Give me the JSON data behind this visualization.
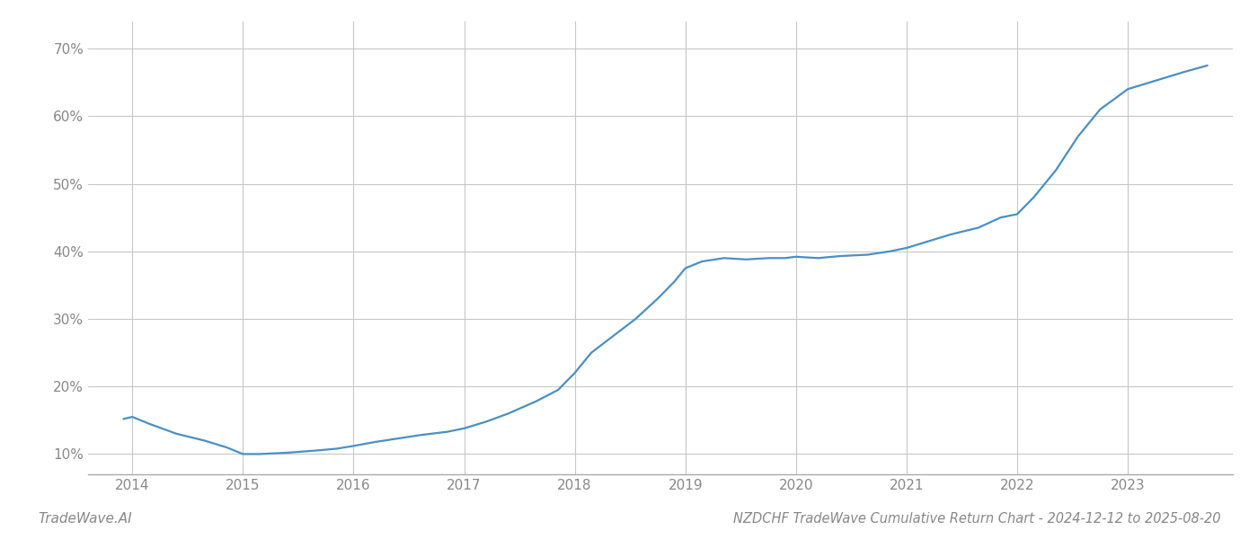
{
  "title": "NZDCHF TradeWave Cumulative Return Chart - 2024-12-12 to 2025-08-20",
  "watermark": "TradeWave.AI",
  "line_color": "#4a90c4",
  "background_color": "#ffffff",
  "grid_color": "#c8c8c8",
  "x_values": [
    2013.92,
    2014.0,
    2014.15,
    2014.4,
    2014.65,
    2014.85,
    2015.0,
    2015.15,
    2015.4,
    2015.65,
    2015.85,
    2016.0,
    2016.2,
    2016.4,
    2016.6,
    2016.85,
    2017.0,
    2017.2,
    2017.4,
    2017.65,
    2017.85,
    2018.0,
    2018.15,
    2018.35,
    2018.55,
    2018.75,
    2018.9,
    2019.0,
    2019.15,
    2019.35,
    2019.55,
    2019.75,
    2019.9,
    2020.0,
    2020.2,
    2020.4,
    2020.65,
    2020.85,
    2021.0,
    2021.2,
    2021.4,
    2021.65,
    2021.85,
    2022.0,
    2022.15,
    2022.35,
    2022.55,
    2022.75,
    2023.0,
    2023.2,
    2023.5,
    2023.72
  ],
  "y_values": [
    15.2,
    15.5,
    14.5,
    13.0,
    12.0,
    11.0,
    10.0,
    10.0,
    10.2,
    10.5,
    10.8,
    11.2,
    11.8,
    12.3,
    12.8,
    13.3,
    13.8,
    14.8,
    16.0,
    17.8,
    19.5,
    22.0,
    25.0,
    27.5,
    30.0,
    33.0,
    35.5,
    37.5,
    38.5,
    39.0,
    38.8,
    39.0,
    39.0,
    39.2,
    39.0,
    39.3,
    39.5,
    40.0,
    40.5,
    41.5,
    42.5,
    43.5,
    45.0,
    45.5,
    48.0,
    52.0,
    57.0,
    61.0,
    64.0,
    65.0,
    66.5,
    67.5
  ],
  "xlim": [
    2013.6,
    2023.95
  ],
  "ylim": [
    7,
    74
  ],
  "yticks": [
    10,
    20,
    30,
    40,
    50,
    60,
    70
  ],
  "ytick_labels": [
    "10%",
    "20%",
    "30%",
    "40%",
    "50%",
    "60%",
    "70%"
  ],
  "xticks": [
    2014,
    2015,
    2016,
    2017,
    2018,
    2019,
    2020,
    2021,
    2022,
    2023
  ],
  "xtick_labels": [
    "2014",
    "2015",
    "2016",
    "2017",
    "2018",
    "2019",
    "2020",
    "2021",
    "2022",
    "2023"
  ],
  "line_width": 1.6,
  "title_fontsize": 10.5,
  "tick_fontsize": 11,
  "watermark_fontsize": 11
}
